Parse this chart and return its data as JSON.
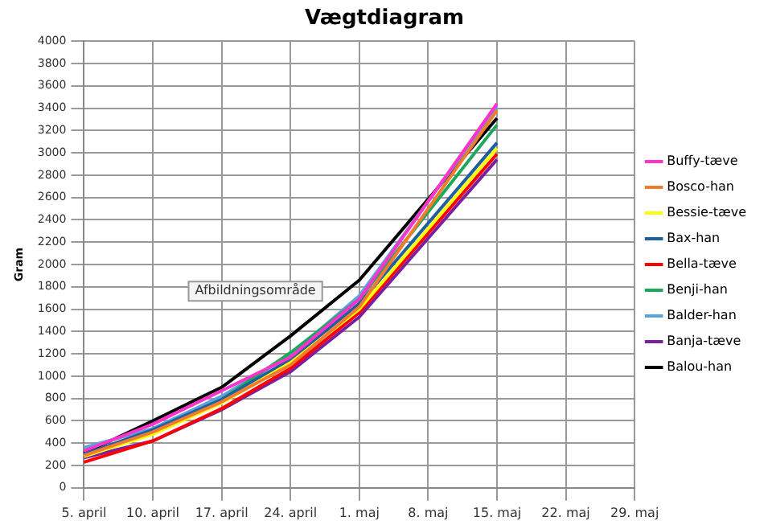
{
  "chart_data": {
    "type": "line",
    "title": "Vægtdiagram",
    "ylabel": "Gram",
    "categories": [
      "5. april",
      "10. april",
      "17. april",
      "24. april",
      "1. maj",
      "8. maj",
      "15. maj",
      "22. maj",
      "29. maj"
    ],
    "series": [
      {
        "name": "Buffy-tæve",
        "color": "#ff33cc",
        "values": [
          330,
          570,
          870,
          1170,
          1690,
          null,
          3440,
          null,
          null
        ]
      },
      {
        "name": "Bosco-han",
        "color": "#f07d2d",
        "values": [
          290,
          500,
          770,
          1100,
          1620,
          null,
          3380,
          null,
          null
        ]
      },
      {
        "name": "Bessie-tæve",
        "color": "#ffff00",
        "values": [
          280,
          480,
          760,
          1120,
          1600,
          null,
          3040,
          null,
          null
        ]
      },
      {
        "name": "Bax-han",
        "color": "#1f5fa0",
        "values": [
          300,
          520,
          790,
          1150,
          1650,
          null,
          3090,
          null,
          null
        ]
      },
      {
        "name": "Bella-tæve",
        "color": "#ff0000",
        "values": [
          230,
          420,
          710,
          1070,
          1570,
          null,
          2990,
          null,
          null
        ]
      },
      {
        "name": "Benji-han",
        "color": "#1aa85a",
        "values": [
          300,
          490,
          790,
          1210,
          1690,
          null,
          3250,
          null,
          null
        ]
      },
      {
        "name": "Balder-han",
        "color": "#5ba3dd",
        "values": [
          360,
          530,
          820,
          1190,
          1720,
          null,
          3410,
          null,
          null
        ]
      },
      {
        "name": "Banja-tæve",
        "color": "#7a1fa0",
        "values": [
          270,
          420,
          700,
          1040,
          1530,
          null,
          2940,
          null,
          null
        ]
      },
      {
        "name": "Balou-han",
        "color": "#000000",
        "values": [
          310,
          600,
          900,
          1360,
          1860,
          null,
          3310,
          null,
          null
        ]
      }
    ],
    "ylim": [
      0,
      4000
    ],
    "yticks": [
      0,
      200,
      400,
      600,
      800,
      1000,
      1200,
      1400,
      1600,
      1800,
      2000,
      2200,
      2400,
      2600,
      2800,
      3000,
      3200,
      3400,
      3600,
      3800,
      4000
    ],
    "grid": true,
    "legend": "right",
    "marker": "none",
    "line_style": "solid",
    "annotations": [
      "Afbildningsområde"
    ]
  }
}
